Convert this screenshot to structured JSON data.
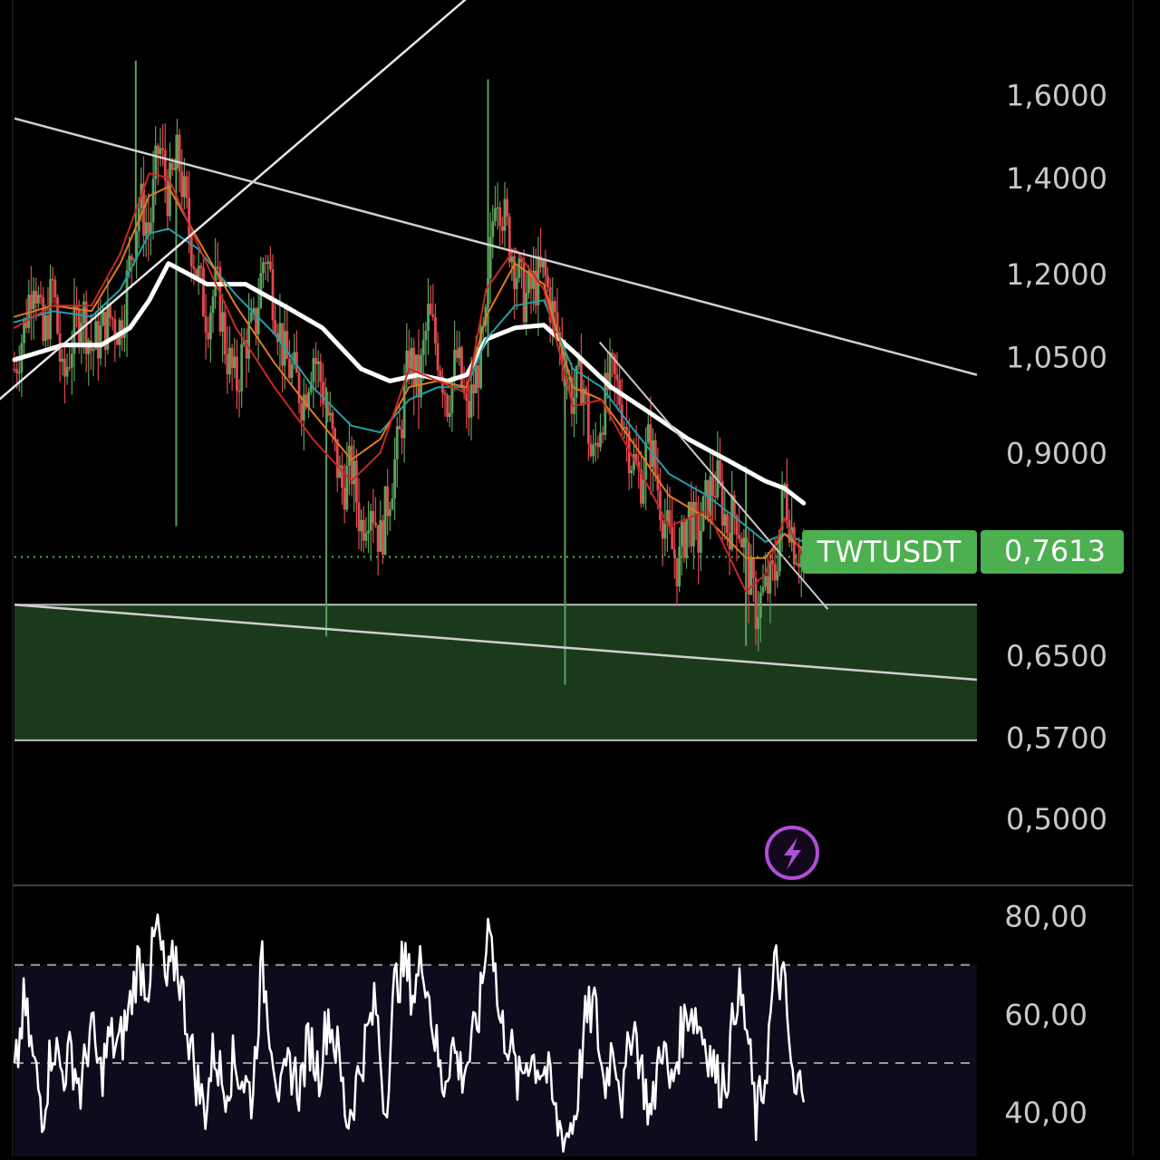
{
  "symbol_label": "TWTUSDT",
  "price_label": "0,7613",
  "colors": {
    "background": "#000000",
    "up": "#5aa25c",
    "down": "#e0494f",
    "ema_short": "#c62828",
    "ema_mid": "#e07a1f",
    "ema_long": "#23a0a8",
    "ema_main": "#ffffff",
    "zone": "#1b3a1b",
    "badge": "#4caf50",
    "axis_text": "#c8c8c8",
    "bolt": "#b04fd6",
    "rsi_bg": "#0d0b1c"
  },
  "icons": {
    "alert": "lightning-icon"
  },
  "chart_data": [
    {
      "type": "line",
      "title": "",
      "xlabel": "",
      "ylabel": "",
      "symbol": "TWTUSDT",
      "last_price": 0.7613,
      "y_scale": "log",
      "ylim": [
        0.455,
        1.82
      ],
      "y_ticks": [
        {
          "value": 1.6,
          "label": "1,6000"
        },
        {
          "value": 1.4,
          "label": "1,4000"
        },
        {
          "value": 1.2,
          "label": "1,2000"
        },
        {
          "value": 1.05,
          "label": "1,0500"
        },
        {
          "value": 0.9,
          "label": "0,9000"
        },
        {
          "value": 0.65,
          "label": "0,6500"
        },
        {
          "value": 0.57,
          "label": "0,5700"
        },
        {
          "value": 0.5,
          "label": "0,5000"
        }
      ],
      "grid": false,
      "x_range": [
        0,
        100
      ],
      "close_series": [
        [
          0,
          1.03
        ],
        [
          1,
          1.1
        ],
        [
          2,
          1.21
        ],
        [
          3,
          1.07
        ],
        [
          4,
          1.18
        ],
        [
          5,
          1.0
        ],
        [
          6,
          1.08
        ],
        [
          7,
          1.14
        ],
        [
          8,
          1.06
        ],
        [
          9,
          1.09
        ],
        [
          10,
          1.12
        ],
        [
          11,
          1.1
        ],
        [
          12,
          1.22
        ],
        [
          13,
          1.35
        ],
        [
          14,
          1.28
        ],
        [
          15,
          1.48
        ],
        [
          16,
          1.36
        ],
        [
          17,
          1.45
        ],
        [
          18,
          1.3
        ],
        [
          19,
          1.2
        ],
        [
          20,
          1.12
        ],
        [
          21,
          1.18
        ],
        [
          22,
          1.06
        ],
        [
          23,
          1.0
        ],
        [
          24,
          1.08
        ],
        [
          25,
          1.1
        ],
        [
          26,
          1.25
        ],
        [
          27,
          1.15
        ],
        [
          28,
          1.05
        ],
        [
          29,
          1.02
        ],
        [
          30,
          0.98
        ],
        [
          31,
          1.06
        ],
        [
          32,
          1.0
        ],
        [
          33,
          0.92
        ],
        [
          34,
          0.85
        ],
        [
          35,
          0.88
        ],
        [
          36,
          0.8
        ],
        [
          37,
          0.84
        ],
        [
          38,
          0.78
        ],
        [
          39,
          0.85
        ],
        [
          40,
          0.92
        ],
        [
          41,
          1.05
        ],
        [
          42,
          1.0
        ],
        [
          43,
          1.12
        ],
        [
          44,
          1.06
        ],
        [
          45,
          0.98
        ],
        [
          46,
          1.05
        ],
        [
          47,
          0.95
        ],
        [
          48,
          1.02
        ],
        [
          49,
          1.1
        ],
        [
          50,
          1.4
        ],
        [
          51,
          1.3
        ],
        [
          52,
          1.22
        ],
        [
          53,
          1.15
        ],
        [
          54,
          1.18
        ],
        [
          55,
          1.2
        ],
        [
          56,
          1.12
        ],
        [
          57,
          1.05
        ],
        [
          58,
          0.98
        ],
        [
          59,
          1.02
        ],
        [
          60,
          0.88
        ],
        [
          61,
          0.96
        ],
        [
          62,
          1.02
        ],
        [
          63,
          0.98
        ],
        [
          64,
          0.9
        ],
        [
          65,
          0.86
        ],
        [
          66,
          0.92
        ],
        [
          67,
          0.84
        ],
        [
          68,
          0.78
        ],
        [
          69,
          0.75
        ],
        [
          70,
          0.82
        ],
        [
          71,
          0.78
        ],
        [
          72,
          0.84
        ],
        [
          73,
          0.86
        ],
        [
          74,
          0.8
        ],
        [
          75,
          0.82
        ],
        [
          76,
          0.76
        ],
        [
          77,
          0.7
        ],
        [
          78,
          0.72
        ],
        [
          79,
          0.74
        ],
        [
          80,
          0.85
        ],
        [
          81,
          0.78
        ],
        [
          82,
          0.7613
        ]
      ],
      "high_low_marks": [
        {
          "x": 12.6,
          "high": 1.69,
          "low": 1.24
        },
        {
          "x": 16.8,
          "high": 1.5,
          "low": 0.8
        },
        {
          "x": 32.4,
          "high": 1.0,
          "low": 0.67
        },
        {
          "x": 49.2,
          "high": 1.64,
          "low": 1.05
        },
        {
          "x": 57.2,
          "high": 1.08,
          "low": 0.62
        },
        {
          "x": 76.0,
          "high": 0.88,
          "low": 0.66
        }
      ],
      "indicators": [
        {
          "name": "ema_main",
          "color": "#ffffff",
          "width": 5,
          "points": [
            [
              0,
              1.045
            ],
            [
              5,
              1.07
            ],
            [
              9,
              1.07
            ],
            [
              12,
              1.1
            ],
            [
              14,
              1.15
            ],
            [
              16,
              1.22
            ],
            [
              18,
              1.2
            ],
            [
              20,
              1.18
            ],
            [
              24,
              1.18
            ],
            [
              28,
              1.14
            ],
            [
              32,
              1.1
            ],
            [
              36,
              1.03
            ],
            [
              39,
              1.01
            ],
            [
              42,
              1.02
            ],
            [
              45,
              1.01
            ],
            [
              47,
              1.02
            ],
            [
              49,
              1.08
            ],
            [
              52,
              1.1
            ],
            [
              55,
              1.105
            ],
            [
              58,
              1.06
            ],
            [
              62,
              1.0
            ],
            [
              66,
              0.96
            ],
            [
              70,
              0.92
            ],
            [
              74,
              0.89
            ],
            [
              78,
              0.86
            ],
            [
              80,
              0.85
            ],
            [
              82,
              0.83
            ]
          ]
        },
        {
          "name": "ema_long",
          "color": "#23a0a8",
          "width": 2,
          "points": [
            [
              0,
              1.11
            ],
            [
              4,
              1.13
            ],
            [
              8,
              1.12
            ],
            [
              11,
              1.17
            ],
            [
              14,
              1.28
            ],
            [
              16,
              1.29
            ],
            [
              19,
              1.25
            ],
            [
              23,
              1.16
            ],
            [
              27,
              1.09
            ],
            [
              31,
              1.0
            ],
            [
              35,
              0.94
            ],
            [
              38,
              0.93
            ],
            [
              41,
              0.98
            ],
            [
              44,
              1.0
            ],
            [
              47,
              1.0
            ],
            [
              49,
              1.08
            ],
            [
              52,
              1.14
            ],
            [
              55,
              1.15
            ],
            [
              58,
              1.03
            ],
            [
              61,
              1.0
            ],
            [
              64,
              0.94
            ],
            [
              68,
              0.87
            ],
            [
              72,
              0.84
            ],
            [
              76,
              0.8
            ],
            [
              78,
              0.78
            ],
            [
              80,
              0.79
            ],
            [
              82,
              0.78
            ]
          ]
        },
        {
          "name": "ema_mid",
          "color": "#e07a1f",
          "width": 2,
          "points": [
            [
              0,
              1.12
            ],
            [
              4,
              1.14
            ],
            [
              8,
              1.13
            ],
            [
              11,
              1.22
            ],
            [
              14,
              1.36
            ],
            [
              16,
              1.38
            ],
            [
              19,
              1.27
            ],
            [
              23,
              1.14
            ],
            [
              27,
              1.04
            ],
            [
              31,
              0.96
            ],
            [
              35,
              0.89
            ],
            [
              38,
              0.92
            ],
            [
              41,
              1.0
            ],
            [
              44,
              1.01
            ],
            [
              47,
              1.0
            ],
            [
              49,
              1.12
            ],
            [
              52,
              1.22
            ],
            [
              55,
              1.18
            ],
            [
              58,
              1.0
            ],
            [
              61,
              0.98
            ],
            [
              64,
              0.92
            ],
            [
              68,
              0.84
            ],
            [
              72,
              0.81
            ],
            [
              76,
              0.76
            ],
            [
              78,
              0.76
            ],
            [
              80,
              0.79
            ],
            [
              82,
              0.77
            ]
          ]
        },
        {
          "name": "ema_short",
          "color": "#c62828",
          "width": 2,
          "points": [
            [
              0,
              1.1
            ],
            [
              4,
              1.14
            ],
            [
              8,
              1.14
            ],
            [
              11,
              1.24
            ],
            [
              14,
              1.41
            ],
            [
              16,
              1.4
            ],
            [
              19,
              1.26
            ],
            [
              23,
              1.1
            ],
            [
              27,
              1.0
            ],
            [
              31,
              0.92
            ],
            [
              35,
              0.86
            ],
            [
              38,
              0.9
            ],
            [
              41,
              1.03
            ],
            [
              44,
              1.01
            ],
            [
              47,
              0.99
            ],
            [
              49,
              1.17
            ],
            [
              52,
              1.25
            ],
            [
              55,
              1.17
            ],
            [
              58,
              0.97
            ],
            [
              61,
              0.98
            ],
            [
              64,
              0.9
            ],
            [
              68,
              0.8
            ],
            [
              72,
              0.82
            ],
            [
              76,
              0.72
            ],
            [
              78,
              0.74
            ],
            [
              80,
              0.81
            ],
            [
              82,
              0.76
            ]
          ]
        }
      ],
      "trendlines": [
        {
          "color": "#e6e6e6",
          "width": 2.5,
          "from": [
            -2,
            0.975
          ],
          "to": [
            54,
            2.05
          ]
        },
        {
          "color": "#d0d0d0",
          "width": 2.5,
          "from": [
            0,
            1.54
          ],
          "to": [
            100,
            1.02
          ]
        },
        {
          "color": "#d0d0d0",
          "width": 2.5,
          "from": [
            0,
            0.705
          ],
          "to": [
            100,
            0.625
          ]
        },
        {
          "color": "#c8c8c8",
          "width": 2,
          "from": [
            60.8,
            1.075
          ],
          "to": [
            84.5,
            0.7
          ]
        }
      ],
      "zone": {
        "top": 0.705,
        "bottom": 0.567,
        "x_from": 0,
        "x_to": 100
      },
      "last_price_line": {
        "value": 0.7613,
        "style": "dotted"
      }
    },
    {
      "type": "line",
      "title": "",
      "xlabel": "",
      "ylabel": "",
      "ylim": [
        31,
        86
      ],
      "y_ticks": [
        {
          "value": 80,
          "label": "80,00"
        },
        {
          "value": 60,
          "label": "60,00"
        },
        {
          "value": 40,
          "label": "40,00"
        }
      ],
      "band": {
        "upper": 70,
        "middle": 50,
        "lower": 30
      },
      "series": [
        {
          "values": [
            46,
            62,
            50,
            40,
            55,
            48,
            52,
            44,
            58,
            47,
            55,
            53,
            60,
            71,
            66,
            78,
            65,
            72,
            60,
            48,
            40,
            53,
            45,
            50,
            47,
            43,
            70,
            56,
            42,
            50,
            45,
            55,
            48,
            60,
            52,
            38,
            46,
            55,
            62,
            40,
            66,
            70,
            64,
            72,
            58,
            45,
            54,
            48,
            52,
            62,
            82,
            58,
            55,
            45,
            52,
            50,
            48,
            38,
            35,
            40,
            58,
            62,
            45,
            55,
            42,
            60,
            48,
            38,
            56,
            44,
            55,
            62,
            58,
            53,
            46,
            48,
            66,
            57,
            38,
            48,
            70,
            65,
            42,
            48
          ]
        }
      ]
    }
  ]
}
